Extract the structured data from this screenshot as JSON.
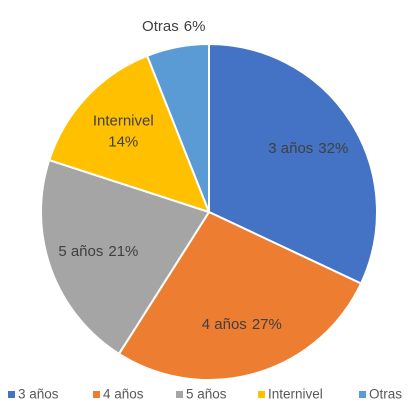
{
  "chart_data": {
    "type": "pie",
    "categories": [
      "3 años",
      "4 años",
      "5 años",
      "Internivel",
      "Otras"
    ],
    "values": [
      32,
      27,
      21,
      14,
      6
    ],
    "value_labels": [
      "32%",
      "27%",
      "21%",
      "14%",
      "6%"
    ],
    "colors": [
      "#4472c4",
      "#ed7d31",
      "#a5a5a5",
      "#ffc000",
      "#5b9bd5"
    ],
    "legend": "bottom"
  }
}
